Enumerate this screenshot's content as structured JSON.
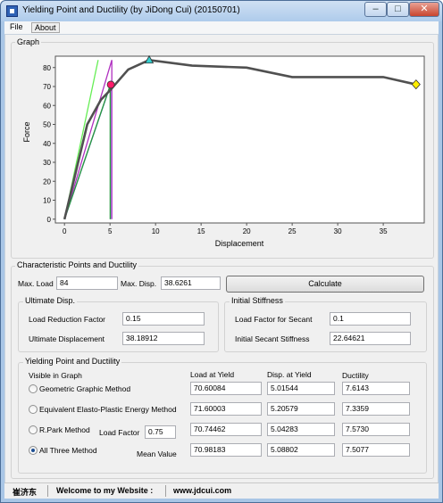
{
  "window": {
    "title": "Yielding Point and Ductility (by JiDong Cui) (20150701)"
  },
  "menu": [
    "File",
    "About"
  ],
  "graph": {
    "group_label": "Graph",
    "chart_data": {
      "type": "line",
      "xlabel": "Displacement",
      "ylabel": "Force",
      "xlim": [
        -1,
        39.5
      ],
      "ylim": [
        -2,
        86
      ],
      "xticks": [
        0,
        5,
        10,
        15,
        20,
        25,
        30,
        35
      ],
      "yticks": [
        0,
        10,
        20,
        30,
        40,
        50,
        60,
        70,
        80
      ],
      "grid": false,
      "series": [
        {
          "values": [
            [
              0,
              0
            ],
            [
              2.5,
              50
            ],
            [
              4,
              63
            ],
            [
              5,
              68
            ],
            [
              7,
              79
            ],
            [
              9.3,
              84
            ],
            [
              14,
              81
            ],
            [
              20,
              80
            ],
            [
              25,
              75
            ],
            [
              35,
              75
            ],
            [
              38.6,
              71.1
            ]
          ],
          "color": "#505050"
        },
        {
          "values": [
            [
              0,
              0
            ],
            [
              3.7,
              84
            ]
          ],
          "color": "#66ee55"
        },
        {
          "values": [
            [
              0,
              0
            ],
            [
              5.02,
              70.6
            ],
            [
              5.02,
              0
            ]
          ],
          "color": "#2a9a3a"
        },
        {
          "values": [
            [
              0,
              0
            ],
            [
              5.2,
              84
            ],
            [
              5.2,
              0
            ]
          ],
          "color": "#b030c0"
        },
        {
          "values": [
            [
              0,
              0
            ],
            [
              5.04,
              70.7
            ],
            [
              5.04,
              0
            ]
          ],
          "color": "#3050e0"
        }
      ],
      "markers": [
        {
          "x": 9.3,
          "y": 84,
          "shape": "triangle",
          "color": "#33d0d0"
        },
        {
          "x": 5.09,
          "y": 70.98,
          "shape": "circle",
          "color": "#ff1a6a"
        },
        {
          "x": 38.6,
          "y": 71.1,
          "shape": "diamond",
          "color": "#ffee00"
        }
      ]
    }
  },
  "characteristic": {
    "group_label": "Characteristic Points and Ductility",
    "max_load_label": "Max. Load",
    "max_load": "84",
    "max_disp_label": "Max. Disp.",
    "max_disp": "38.6261",
    "calculate": "Calculate"
  },
  "ultimate": {
    "group_label": "Ultimate Disp.",
    "reduction_label": "Load Reduction Factor",
    "reduction": "0.15",
    "ultimate_label": "Ultimate Displacement",
    "ultimate": "38.18912"
  },
  "stiffness": {
    "group_label": "Initial Stiffness",
    "factor_label": "Load Factor for Secant",
    "factor": "0.1",
    "secant_label": "Initial Secant Stiffness",
    "secant": "22.64621"
  },
  "yield": {
    "group_label": "Yielding Point and Ductility",
    "visible_label": "Visible in Graph",
    "headers": [
      "Load at Yield",
      "Disp. at Yield",
      "Ductility"
    ],
    "rows": [
      {
        "label": "Geometric Graphic Method",
        "load": "70.60084",
        "disp": "5.01544",
        "ductility": "7.6143",
        "selected": false
      },
      {
        "label": "Equivalent Elasto-Plastic Energy Method",
        "load": "71.60003",
        "disp": "5.20579",
        "ductility": "7.3359",
        "selected": false
      },
      {
        "label": "R.Park Method",
        "load": "70.74462",
        "disp": "5.04283",
        "ductility": "7.5730",
        "selected": false
      },
      {
        "label": "All Three Method",
        "load": "70.98183",
        "disp": "5.08802",
        "ductility": "7.5077",
        "selected": true
      }
    ],
    "load_factor_label": "Load Factor",
    "load_factor": "0.75",
    "mean_label": "Mean Value"
  },
  "status": {
    "author": "崔济东",
    "welcome": "Welcome to my Website :",
    "website": "www.jdcui.com"
  }
}
